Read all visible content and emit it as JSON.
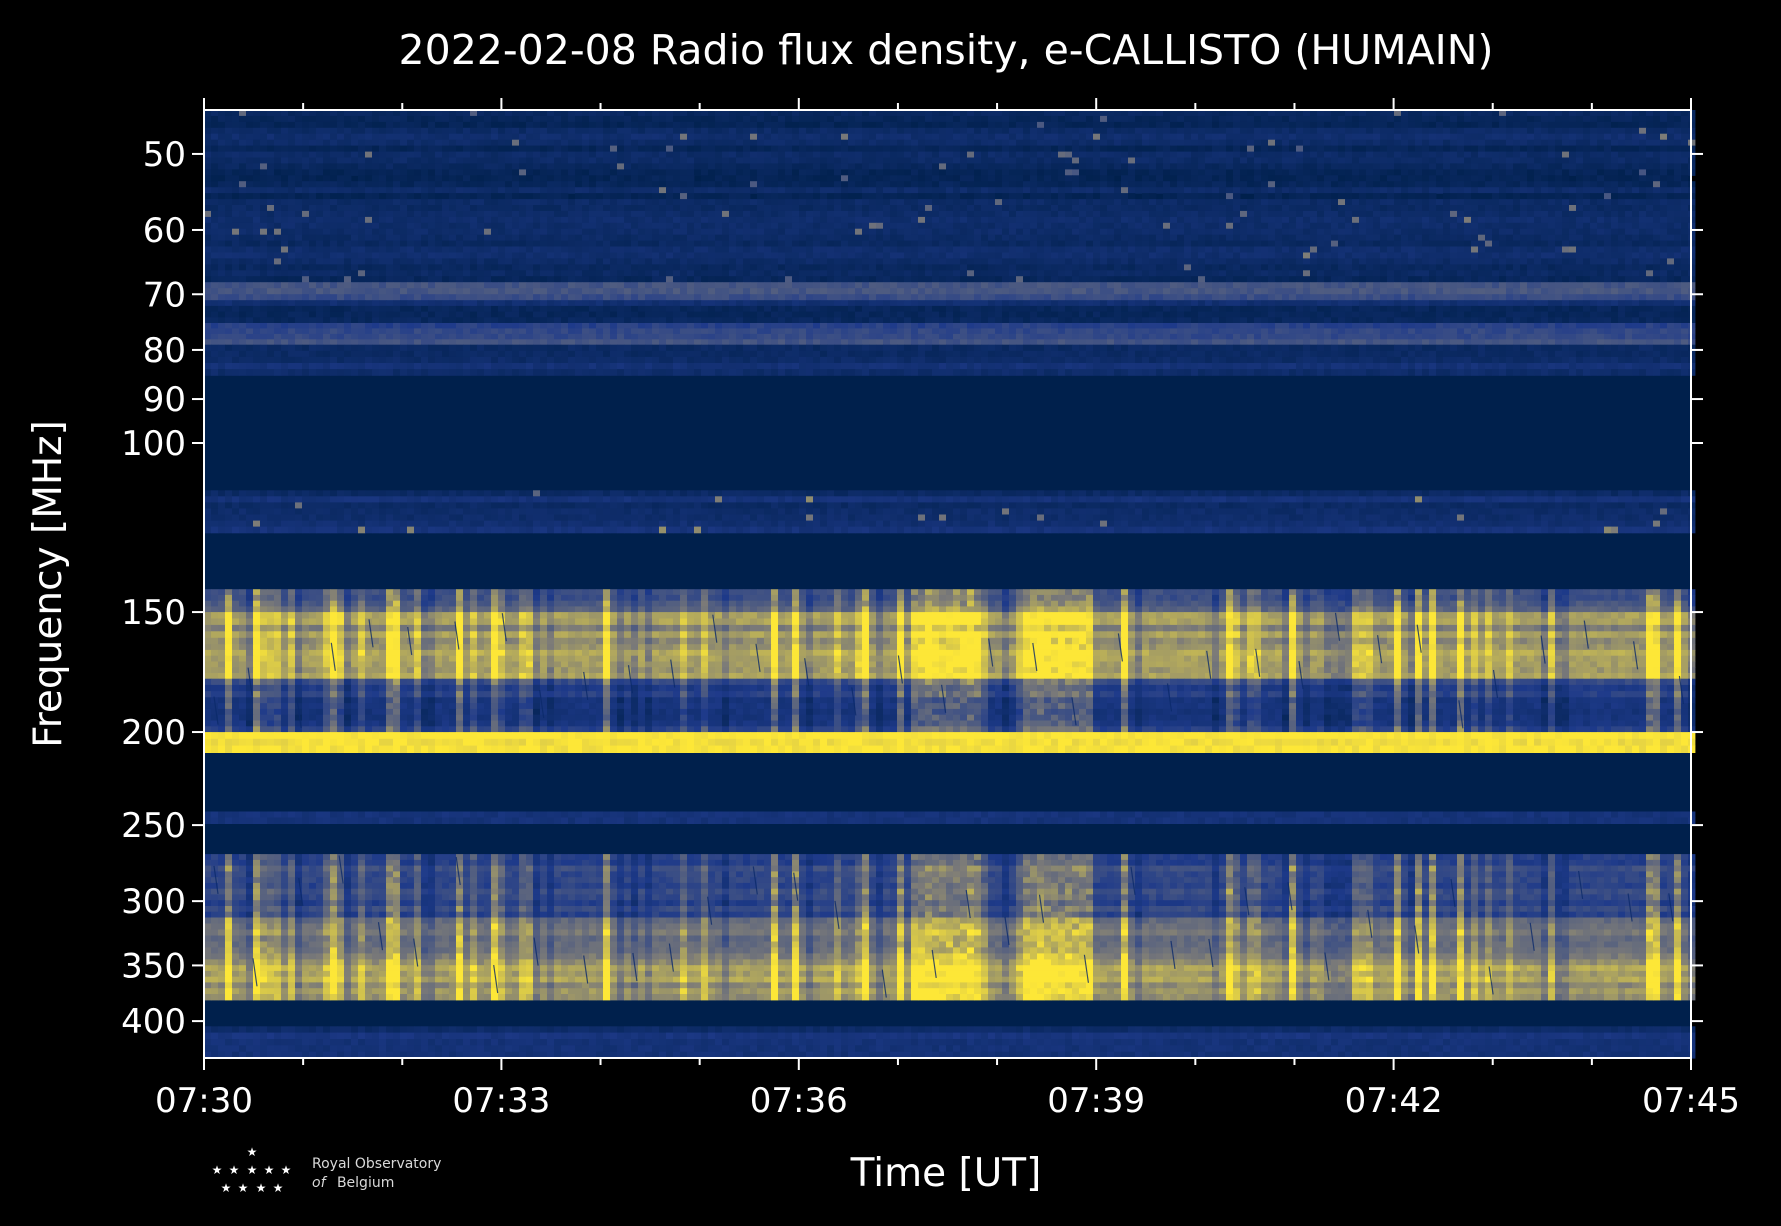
{
  "chart_data": {
    "type": "heatmap",
    "title": "2022-02-08 Radio flux density, e-CALLISTO (HUMAIN)",
    "xlabel": "Time [UT]",
    "ylabel": "Frequency [MHz]",
    "x_ticks": [
      "07:30",
      "07:33",
      "07:36",
      "07:39",
      "07:42",
      "07:45"
    ],
    "x_range": [
      "07:30",
      "07:45"
    ],
    "y_scale": "log",
    "y_range": [
      45,
      437
    ],
    "y_ticks": [
      50,
      60,
      70,
      80,
      90,
      100,
      150,
      200,
      250,
      300,
      350,
      400
    ],
    "colormap": [
      "#00204c",
      "#1e3a8a",
      "#7c7b78",
      "#fde737"
    ],
    "colorbar": false,
    "grid": false,
    "bands": [
      {
        "f_low": 45,
        "f_high": 68,
        "level": 0.12,
        "speckle": "sparse-bright"
      },
      {
        "f_low": 68,
        "f_high": 71,
        "level": 0.45,
        "speckle": "none"
      },
      {
        "f_low": 71,
        "f_high": 75,
        "level": 0.15,
        "speckle": "none"
      },
      {
        "f_low": 75,
        "f_high": 79,
        "level": 0.42,
        "speckle": "none"
      },
      {
        "f_low": 79,
        "f_high": 85,
        "level": 0.18,
        "speckle": "none"
      },
      {
        "f_low": 85,
        "f_high": 112,
        "level": 0.0,
        "speckle": "none"
      },
      {
        "f_low": 112,
        "f_high": 124,
        "level": 0.18,
        "speckle": "sparse-bright"
      },
      {
        "f_low": 124,
        "f_high": 142,
        "level": 0.0,
        "speckle": "none"
      },
      {
        "f_low": 142,
        "f_high": 150,
        "level": 0.5,
        "speckle": "vertical"
      },
      {
        "f_low": 150,
        "f_high": 162,
        "level": 0.72,
        "speckle": "vertical"
      },
      {
        "f_low": 162,
        "f_high": 176,
        "level": 0.8,
        "speckle": "vertical"
      },
      {
        "f_low": 176,
        "f_high": 184,
        "level": 0.35,
        "speckle": "vertical"
      },
      {
        "f_low": 184,
        "f_high": 200,
        "level": 0.3,
        "speckle": "vertical"
      },
      {
        "f_low": 200,
        "f_high": 210,
        "level": 0.95,
        "speckle": "none"
      },
      {
        "f_low": 210,
        "f_high": 242,
        "level": 0.0,
        "speckle": "none"
      },
      {
        "f_low": 242,
        "f_high": 249,
        "level": 0.3,
        "speckle": "none"
      },
      {
        "f_low": 249,
        "f_high": 268,
        "level": 0.0,
        "speckle": "none"
      },
      {
        "f_low": 268,
        "f_high": 312,
        "level": 0.38,
        "speckle": "vertical"
      },
      {
        "f_low": 312,
        "f_high": 345,
        "level": 0.62,
        "speckle": "vertical"
      },
      {
        "f_low": 345,
        "f_high": 380,
        "level": 0.75,
        "speckle": "vertical"
      },
      {
        "f_low": 380,
        "f_high": 405,
        "level": 0.0,
        "speckle": "none"
      },
      {
        "f_low": 405,
        "f_high": 437,
        "level": 0.22,
        "speckle": "none"
      }
    ]
  },
  "logo": {
    "line1": "Royal Observatory",
    "line2_italic": "of",
    "line2": "Belgium"
  }
}
